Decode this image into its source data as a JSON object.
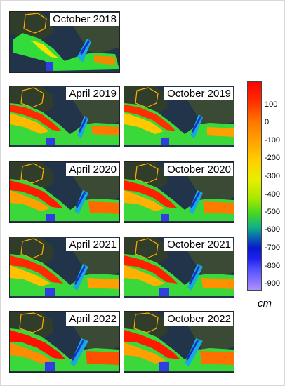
{
  "panels": [
    {
      "label": "October 2018"
    },
    {
      "label": "April 2019"
    },
    {
      "label": "October 2019"
    },
    {
      "label": "April 2020"
    },
    {
      "label": "October 2020"
    },
    {
      "label": "April 2021"
    },
    {
      "label": "October 2021"
    },
    {
      "label": "April 2022"
    },
    {
      "label": "October 2022"
    }
  ],
  "colorbar": {
    "ticks": [
      "100",
      "0",
      "-100",
      "-200",
      "-300",
      "-400",
      "-500",
      "-600",
      "-700",
      "-800",
      "-900"
    ],
    "unit": "cm",
    "colors": [
      "#ff0000",
      "#ff7700",
      "#ffd000",
      "#a8e800",
      "#10b088",
      "#0818d0",
      "#b090ff"
    ]
  }
}
